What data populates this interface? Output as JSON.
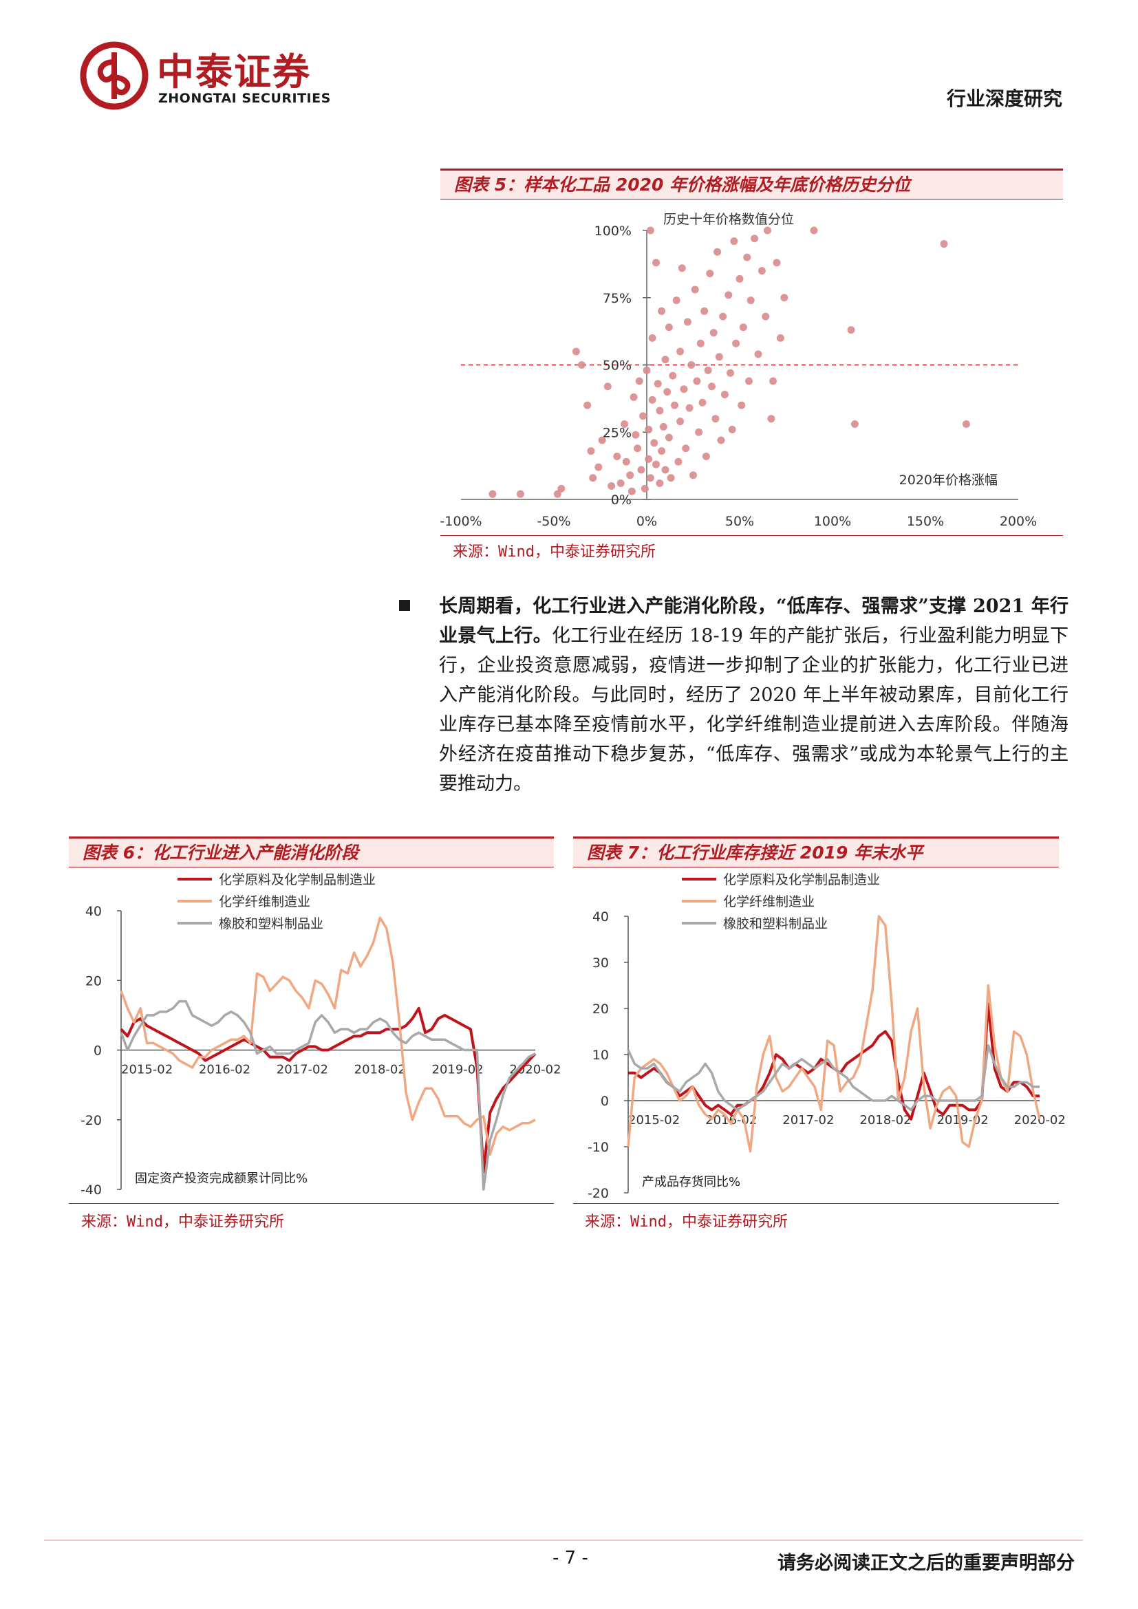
{
  "header": {
    "brand_cn": "中泰证券",
    "brand_en": "ZHONGTAI SECURITIES",
    "report_type": "行业深度研究"
  },
  "colors": {
    "accent": "#b01c22",
    "scatter": "#d98b8d",
    "series_red": "#c0141c",
    "series_orange": "#f0a882",
    "series_gray": "#a8a8a8"
  },
  "figure5": {
    "title": "图表 5：样本化工品 2020 年价格涨幅及年底价格历史分位",
    "source": "来源：Wind，中泰证券研究所",
    "chart_data": {
      "type": "scatter",
      "ylabel": "历史十年价格数值分位",
      "xlabel": "2020年价格涨幅",
      "x_ticks": [
        "-100%",
        "-50%",
        "0%",
        "50%",
        "100%",
        "150%",
        "200%"
      ],
      "y_ticks": [
        "0%",
        "25%",
        "50%",
        "75%",
        "100%"
      ],
      "xlim": [
        -100,
        200
      ],
      "ylim": [
        0,
        100
      ],
      "reference_line_y": 50,
      "points": [
        [
          -83,
          2
        ],
        [
          -68,
          2
        ],
        [
          -48,
          2
        ],
        [
          -46,
          4
        ],
        [
          -38,
          55
        ],
        [
          -35,
          50
        ],
        [
          -32,
          35
        ],
        [
          -30,
          18
        ],
        [
          -29,
          8
        ],
        [
          -26,
          12
        ],
        [
          -24,
          22
        ],
        [
          -21,
          42
        ],
        [
          -19,
          5
        ],
        [
          -16,
          16
        ],
        [
          -14,
          6
        ],
        [
          -12,
          28
        ],
        [
          -11,
          14
        ],
        [
          -9,
          9
        ],
        [
          -8,
          3
        ],
        [
          -7,
          38
        ],
        [
          -6,
          24
        ],
        [
          -5,
          19
        ],
        [
          -4,
          44
        ],
        [
          -3,
          11
        ],
        [
          -2,
          31
        ],
        [
          -1,
          4
        ],
        [
          0,
          48
        ],
        [
          1,
          26
        ],
        [
          1,
          15
        ],
        [
          2,
          100
        ],
        [
          2,
          8
        ],
        [
          3,
          37
        ],
        [
          3,
          60
        ],
        [
          4,
          21
        ],
        [
          5,
          88
        ],
        [
          5,
          13
        ],
        [
          6,
          43
        ],
        [
          7,
          33
        ],
        [
          7,
          6
        ],
        [
          8,
          70
        ],
        [
          8,
          18
        ],
        [
          9,
          27
        ],
        [
          10,
          52
        ],
        [
          10,
          11
        ],
        [
          11,
          40
        ],
        [
          12,
          64
        ],
        [
          12,
          23
        ],
        [
          13,
          8
        ],
        [
          14,
          46
        ],
        [
          15,
          35
        ],
        [
          16,
          74
        ],
        [
          17,
          14
        ],
        [
          18,
          55
        ],
        [
          18,
          29
        ],
        [
          19,
          86
        ],
        [
          20,
          41
        ],
        [
          21,
          19
        ],
        [
          22,
          66
        ],
        [
          23,
          34
        ],
        [
          24,
          50
        ],
        [
          25,
          9
        ],
        [
          26,
          78
        ],
        [
          27,
          44
        ],
        [
          28,
          25
        ],
        [
          29,
          58
        ],
        [
          30,
          36
        ],
        [
          31,
          70
        ],
        [
          32,
          16
        ],
        [
          33,
          48
        ],
        [
          34,
          84
        ],
        [
          35,
          42
        ],
        [
          36,
          62
        ],
        [
          37,
          30
        ],
        [
          38,
          92
        ],
        [
          39,
          53
        ],
        [
          40,
          22
        ],
        [
          41,
          68
        ],
        [
          42,
          39
        ],
        [
          44,
          76
        ],
        [
          45,
          47
        ],
        [
          46,
          26
        ],
        [
          47,
          96
        ],
        [
          48,
          58
        ],
        [
          50,
          82
        ],
        [
          51,
          35
        ],
        [
          52,
          64
        ],
        [
          54,
          90
        ],
        [
          55,
          44
        ],
        [
          56,
          74
        ],
        [
          58,
          97
        ],
        [
          60,
          54
        ],
        [
          62,
          85
        ],
        [
          64,
          68
        ],
        [
          65,
          100
        ],
        [
          67,
          30
        ],
        [
          68,
          44
        ],
        [
          70,
          88
        ],
        [
          72,
          60
        ],
        [
          74,
          75
        ],
        [
          90,
          100
        ],
        [
          110,
          63
        ],
        [
          112,
          28
        ],
        [
          160,
          95
        ],
        [
          172,
          28
        ]
      ]
    }
  },
  "paragraph": {
    "lead": "长周期看，化工行业进入产能消化阶段，“低库存、强需求”支撑 2021 年行业景气上行。",
    "body": "化工行业在经历 18-19 年的产能扩张后，行业盈利能力明显下行，企业投资意愿减弱，疫情进一步抑制了企业的扩张能力，化工行业已进入产能消化阶段。与此同时，经历了 2020 年上半年被动累库，目前化工行业库存已基本降至疫情前水平，化学纤维制造业提前进入去库阶段。伴随海外经济在疫苗推动下稳步复苏，“低库存、强需求”或成为本轮景气上行的主要推动力。"
  },
  "figure6": {
    "title": "图表 6：化工行业进入产能消化阶段",
    "source": "来源：Wind，中泰证券研究所",
    "chart_data": {
      "type": "line",
      "note": "固定资产投资完成额累计同比%",
      "x_ticks": [
        "2015-02",
        "2016-02",
        "2017-02",
        "2018-02",
        "2019-02",
        "2020-02"
      ],
      "y_ticks": [
        "40",
        "20",
        "0",
        "-20",
        "-40"
      ],
      "ylim": [
        -40,
        40
      ],
      "series": [
        {
          "name": "化学原料及化学制品制造业",
          "values": [
            6,
            4,
            8,
            9,
            7,
            6,
            5,
            4,
            3,
            2,
            1,
            0,
            -1,
            -3,
            -2,
            -1,
            0,
            1,
            2,
            3,
            2,
            1,
            0,
            -2,
            -2,
            -2,
            -3,
            -1,
            0,
            1,
            1,
            0,
            0,
            1,
            2,
            3,
            4,
            4,
            5,
            5,
            5,
            6,
            6,
            6,
            7,
            9,
            12,
            5,
            6,
            9,
            10,
            9,
            8,
            7,
            6,
            -5,
            -35,
            -18,
            -14,
            -11,
            -9,
            -7,
            -5,
            -3,
            -1
          ]
        },
        {
          "name": "化学纤维制造业",
          "values": [
            17,
            12,
            8,
            12,
            2,
            2,
            1,
            0,
            -1,
            -3,
            -4,
            -5,
            -2,
            -2,
            0,
            1,
            2,
            3,
            3,
            4,
            2,
            22,
            21,
            17,
            19,
            21,
            20,
            17,
            15,
            12,
            20,
            19,
            16,
            12,
            23,
            22,
            28,
            24,
            27,
            31,
            38,
            35,
            25,
            8,
            -12,
            -20,
            -15,
            -11,
            -11,
            -14,
            -19,
            -19,
            -19,
            -21,
            -22,
            -20,
            -19,
            -30,
            -24,
            -22,
            -23,
            -22,
            -21,
            -21,
            -20
          ]
        },
        {
          "name": "橡胶和塑料制品业",
          "values": [
            5,
            0,
            4,
            7,
            10,
            10,
            11,
            11,
            12,
            14,
            14,
            10,
            9,
            8,
            7,
            8,
            10,
            11,
            10,
            8,
            5,
            -1,
            0,
            1,
            -1,
            -1,
            -1,
            0,
            1,
            2,
            8,
            10,
            8,
            5,
            6,
            6,
            5,
            6,
            6,
            8,
            9,
            8,
            5,
            3,
            2,
            4,
            5,
            4,
            3,
            3,
            3,
            2,
            1,
            0,
            0,
            0,
            -40,
            -26,
            -20,
            -13,
            -8,
            -6,
            -4,
            -2,
            -1
          ]
        }
      ]
    }
  },
  "figure7": {
    "title": "图表 7：化工行业库存接近 2019 年末水平",
    "source": "来源：Wind，中泰证券研究所",
    "chart_data": {
      "type": "line",
      "note": "产成品存货同比%",
      "x_ticks": [
        "2015-02",
        "2016-02",
        "2017-02",
        "2018-02",
        "2019-02",
        "2020-02"
      ],
      "y_ticks": [
        "40",
        "30",
        "20",
        "10",
        "0",
        "-10",
        "-20"
      ],
      "ylim": [
        -20,
        40
      ],
      "series": [
        {
          "name": "化学原料及化学制品制造业",
          "values": [
            6,
            6,
            5,
            6,
            7,
            6,
            4,
            3,
            1,
            2,
            3,
            1,
            -1,
            -2,
            -1,
            -2,
            -3,
            -1,
            -1,
            0,
            1,
            3,
            6,
            10,
            9,
            7,
            8,
            7,
            6,
            7,
            9,
            8,
            7,
            6,
            8,
            9,
            10,
            11,
            12,
            14,
            15,
            13,
            4,
            -2,
            -4,
            1,
            6,
            2,
            -2,
            -3,
            -1,
            -1,
            -1,
            -2,
            -2,
            0,
            21,
            7,
            3,
            2,
            4,
            4,
            3,
            1,
            1
          ]
        },
        {
          "name": "化学纤维制造业",
          "values": [
            -10,
            5,
            7,
            8,
            9,
            8,
            6,
            3,
            0,
            1,
            3,
            -1,
            -3,
            -4,
            -2,
            -3,
            -5,
            -2,
            -4,
            -11,
            3,
            10,
            14,
            5,
            2,
            3,
            5,
            7,
            5,
            3,
            -2,
            13,
            12,
            2,
            4,
            5,
            8,
            16,
            24,
            40,
            38,
            21,
            0,
            5,
            15,
            20,
            3,
            -6,
            -1,
            2,
            3,
            1,
            -9,
            -10,
            -4,
            0,
            25,
            12,
            5,
            2,
            15,
            14,
            10,
            2,
            -4
          ]
        },
        {
          "name": "橡胶和塑料制品业",
          "values": [
            11,
            8,
            7,
            7,
            8,
            6,
            4,
            3,
            2,
            4,
            5,
            6,
            8,
            6,
            2,
            0,
            -1,
            -2,
            -1,
            0,
            1,
            2,
            4,
            6,
            8,
            7,
            8,
            9,
            8,
            7,
            8,
            9,
            7,
            6,
            5,
            3,
            2,
            1,
            0,
            0,
            0,
            1,
            0,
            -1,
            -2,
            0,
            1,
            1,
            0,
            0,
            0,
            0,
            0,
            0,
            0,
            1,
            12,
            8,
            5,
            3,
            3,
            4,
            4,
            3,
            3
          ]
        }
      ]
    }
  },
  "footer": {
    "page_number": "- 7 -",
    "disclaimer": "请务必阅读正文之后的重要声明部分"
  }
}
